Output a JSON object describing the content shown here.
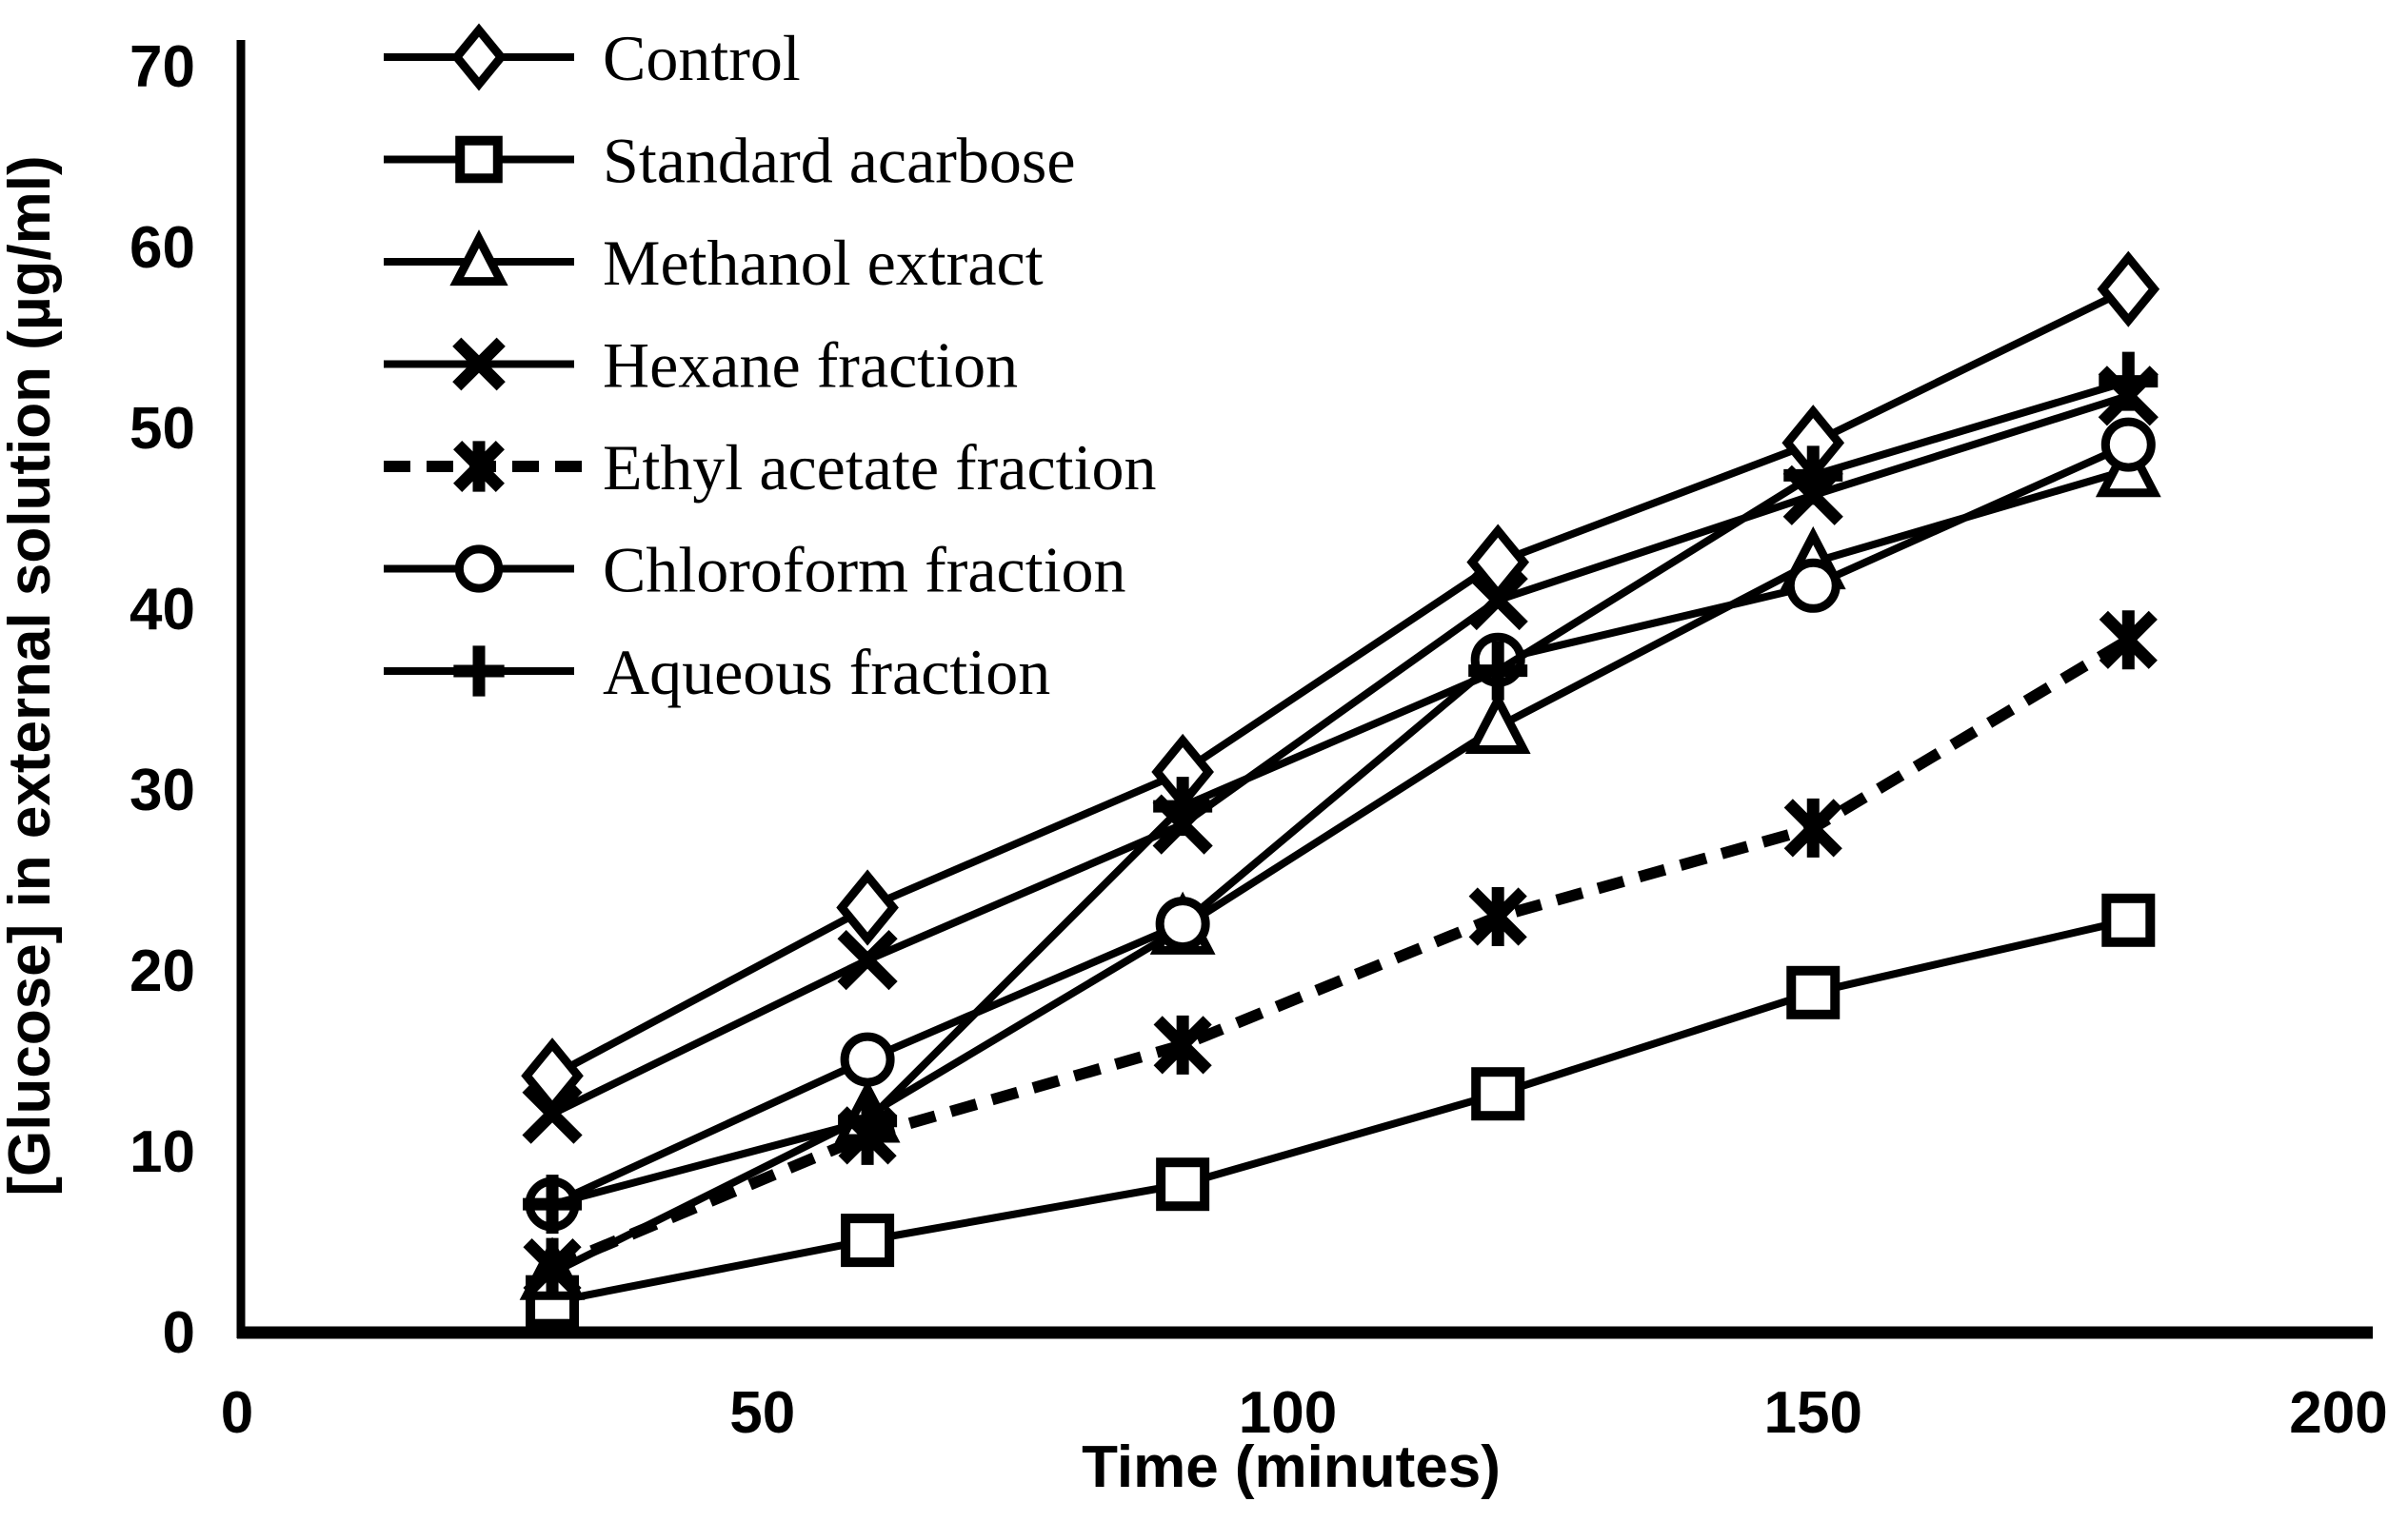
{
  "chart_data": {
    "type": "line",
    "title": "",
    "xlabel": "Time (minutes)",
    "ylabel": "[Glucose] in external solution (µg/ml)",
    "x": [
      30,
      60,
      90,
      120,
      150,
      180
    ],
    "xlim": [
      0,
      200
    ],
    "ylim": [
      0,
      70
    ],
    "x_ticks": [
      0,
      50,
      100,
      150,
      200
    ],
    "y_ticks": [
      0,
      10,
      20,
      30,
      40,
      50,
      60,
      70
    ],
    "grid": false,
    "legend_position": "top-left",
    "line_color": "#000000",
    "background_color": "#ffffff",
    "series": [
      {
        "name": "Control",
        "marker": "diamond",
        "line": "solid",
        "values": [
          14.2,
          23.5,
          31.0,
          42.6,
          49.2,
          57.7
        ]
      },
      {
        "name": "Standard acarbose",
        "marker": "square",
        "line": "solid",
        "values": [
          1.7,
          5.1,
          8.2,
          13.2,
          18.8,
          22.8
        ]
      },
      {
        "name": "Methanol extract",
        "marker": "triangle",
        "line": "solid",
        "values": [
          3.3,
          12.0,
          22.4,
          33.5,
          42.6,
          47.7
        ]
      },
      {
        "name": "Hexane fraction",
        "marker": "x",
        "line": "solid",
        "values": [
          12.1,
          20.6,
          28.1,
          40.5,
          46.3,
          51.8
        ]
      },
      {
        "name": "Ethyl acetate fraction",
        "marker": "asterisk",
        "line": "dashed",
        "values": [
          3.6,
          10.9,
          15.9,
          23.0,
          27.9,
          38.3
        ]
      },
      {
        "name": "Chloroform fraction",
        "marker": "circle",
        "line": "solid",
        "values": [
          7.1,
          15.1,
          22.6,
          37.2,
          41.3,
          49.1
        ]
      },
      {
        "name": "Aqueous fraction",
        "marker": "plus",
        "line": "solid",
        "values": [
          7.1,
          11.7,
          29.1,
          36.6,
          47.4,
          52.6
        ]
      }
    ]
  }
}
